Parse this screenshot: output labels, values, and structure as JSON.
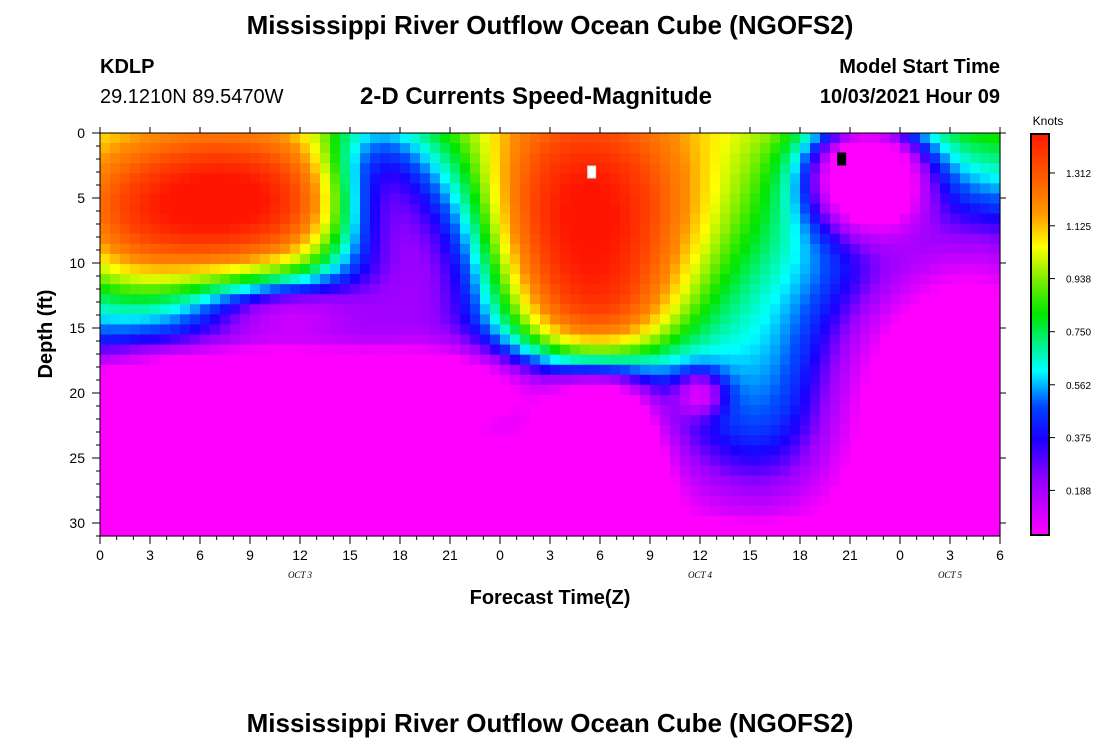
{
  "header": {
    "title": "Mississippi River Outflow Ocean Cube (NGOFS2)",
    "station_id": "KDLP",
    "station_coords": "29.1210N  89.5470W",
    "subtitle": "2-D Currents Speed-Magnitude",
    "model_start_label": "Model Start Time",
    "model_start_value": "10/03/2021 Hour 09"
  },
  "footer": {
    "title": "Mississippi River Outflow Ocean Cube (NGOFS2)"
  },
  "chart_data": {
    "type": "heatmap",
    "title": "2-D Currents Speed-Magnitude",
    "xlabel": "Forecast Time(Z)",
    "ylabel": "Depth (ft)",
    "x_unit": "hours since 10/03/2021 00Z",
    "xlim": [
      0,
      54
    ],
    "ylim": [
      0,
      31
    ],
    "y_inverted": true,
    "x_ticks": [
      {
        "value": 0,
        "label": "0"
      },
      {
        "value": 3,
        "label": "3"
      },
      {
        "value": 6,
        "label": "6"
      },
      {
        "value": 9,
        "label": "9"
      },
      {
        "value": 12,
        "label": "12"
      },
      {
        "value": 15,
        "label": "15"
      },
      {
        "value": 18,
        "label": "18"
      },
      {
        "value": 21,
        "label": "21"
      },
      {
        "value": 24,
        "label": "0"
      },
      {
        "value": 27,
        "label": "3"
      },
      {
        "value": 30,
        "label": "6"
      },
      {
        "value": 33,
        "label": "9"
      },
      {
        "value": 36,
        "label": "12"
      },
      {
        "value": 39,
        "label": "15"
      },
      {
        "value": 42,
        "label": "18"
      },
      {
        "value": 45,
        "label": "21"
      },
      {
        "value": 48,
        "label": "0"
      },
      {
        "value": 51,
        "label": "3"
      },
      {
        "value": 54,
        "label": "6"
      }
    ],
    "y_ticks": [
      0,
      5,
      10,
      15,
      20,
      25,
      30
    ],
    "date_labels": [
      {
        "value": 12,
        "label": "OCT 3"
      },
      {
        "value": 36,
        "label": "OCT 4"
      },
      {
        "value": 51,
        "label": "OCT 5"
      }
    ],
    "colorbar": {
      "unit": "Knots",
      "range": [
        0.03,
        1.45
      ],
      "ticks": [
        0.188,
        0.375,
        0.562,
        0.75,
        0.938,
        1.125,
        1.312
      ],
      "tick_labels": [
        "0.188",
        "0.375",
        "0.562",
        "0.750",
        "0.938",
        "1.125",
        "1.312"
      ]
    },
    "grid": false,
    "legend_placement": "right",
    "markers": [
      {
        "name": "max",
        "x": 29.5,
        "y": 3.0,
        "color": "#ffffff"
      },
      {
        "name": "min",
        "x": 44.5,
        "y": 2.0,
        "color": "#000000"
      }
    ],
    "field_features": [
      {
        "x": 7.5,
        "y": 5.5,
        "value": 0.95,
        "sx": 5.5,
        "sy": 3.6
      },
      {
        "x": 2.0,
        "y": 9.0,
        "value": 0.18,
        "sx": 3.0,
        "sy": 3.5
      },
      {
        "x": 11.0,
        "y": 13.5,
        "value": -0.3,
        "sx": 3.5,
        "sy": 1.8
      },
      {
        "x": 16.0,
        "y": 4.0,
        "value": -0.45,
        "sx": 2.5,
        "sy": 4.5
      },
      {
        "x": 21.0,
        "y": 8.0,
        "value": -0.4,
        "sx": 3.5,
        "sy": 6.0
      },
      {
        "x": 12.0,
        "y": 19.5,
        "value": -0.55,
        "sx": 10.0,
        "sy": 2.0
      },
      {
        "x": 7.0,
        "y": 26.0,
        "value": -0.55,
        "sx": 4.0,
        "sy": 4.0
      },
      {
        "x": 29.0,
        "y": 7.0,
        "value": 0.95,
        "sx": 4.5,
        "sy": 6.0
      },
      {
        "x": 30.0,
        "y": 14.0,
        "value": 0.35,
        "sx": 3.0,
        "sy": 3.0
      },
      {
        "x": 30.0,
        "y": 25.5,
        "value": -0.85,
        "sx": 2.0,
        "sy": 4.0
      },
      {
        "x": 22.0,
        "y": 27.5,
        "value": -0.3,
        "sx": 5.0,
        "sy": 2.5
      },
      {
        "x": 40.0,
        "y": 22.0,
        "value": 0.2,
        "sx": 3.5,
        "sy": 6.0
      },
      {
        "x": 36.0,
        "y": 20.0,
        "value": -0.25,
        "sx": 1.0,
        "sy": 1.2
      },
      {
        "x": 46.0,
        "y": 3.0,
        "value": -0.85,
        "sx": 2.6,
        "sy": 3.2
      },
      {
        "x": 50.0,
        "y": 18.0,
        "value": -0.35,
        "sx": 5.0,
        "sy": 8.0
      },
      {
        "x": 54.0,
        "y": 10.0,
        "value": -0.2,
        "sx": 4.0,
        "sy": 7.0
      }
    ]
  }
}
